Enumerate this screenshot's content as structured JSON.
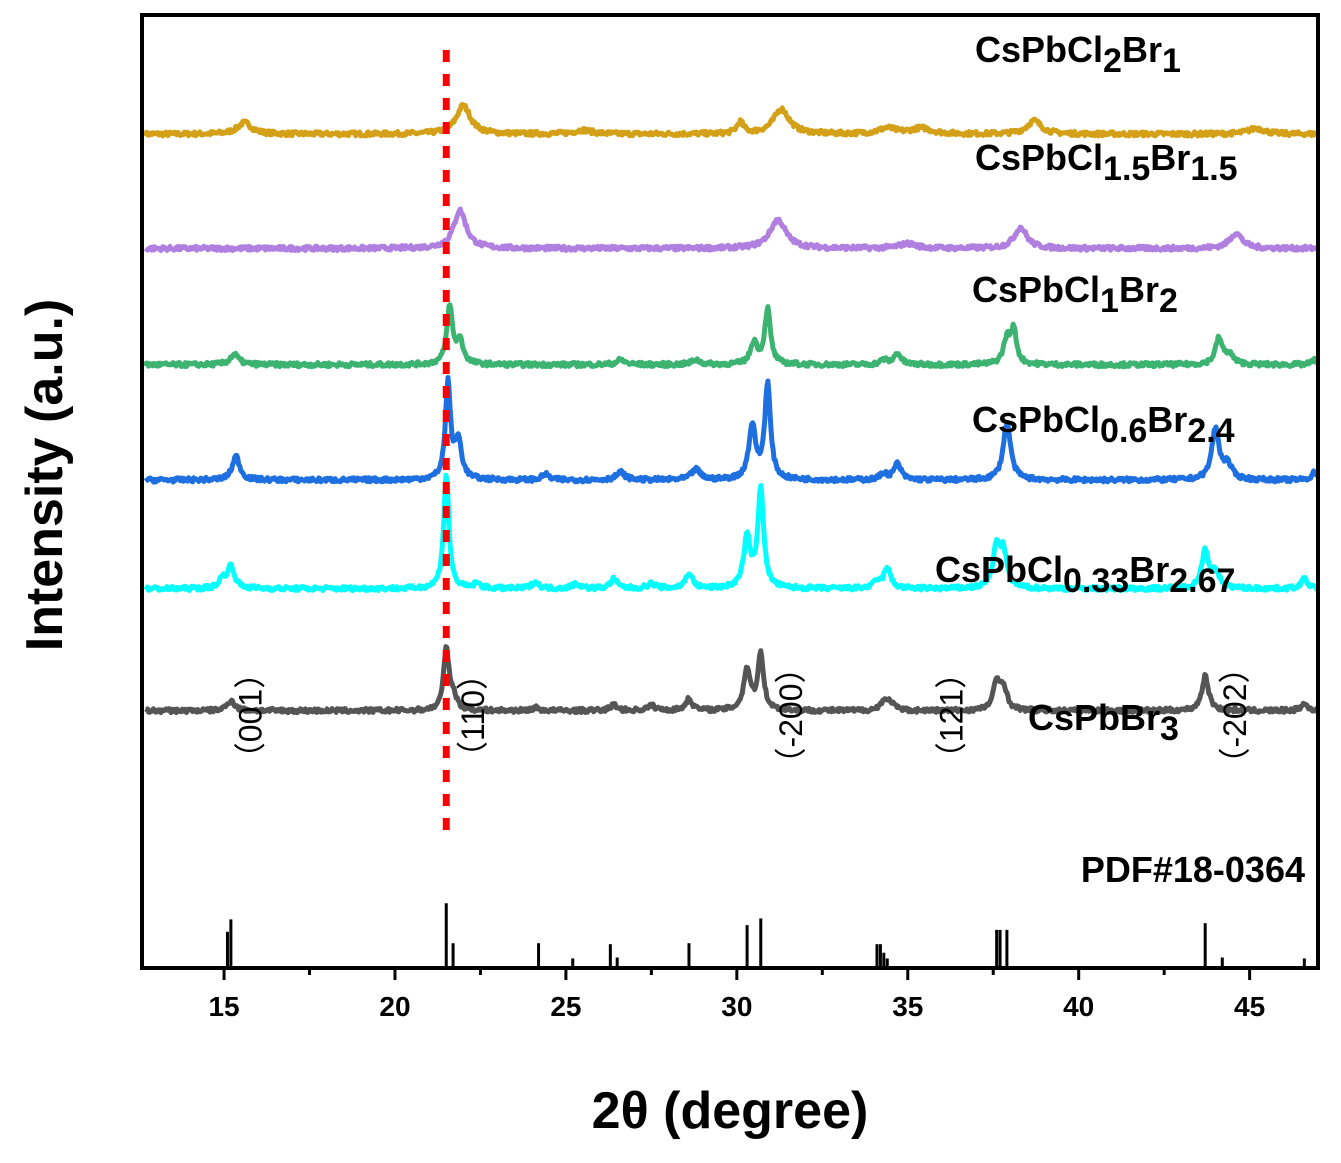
{
  "chart_data": {
    "type": "line",
    "xlabel": "2θ (degree)",
    "ylabel": "Intensity (a.u.)",
    "xlim": [
      12.6,
      47.0
    ],
    "xticks": [
      15,
      20,
      25,
      30,
      35,
      40,
      45
    ],
    "ylim": [
      0,
      100
    ],
    "grid": false,
    "y_ticks_labels": false,
    "series": [
      {
        "name": "CsPbCl2Br1",
        "label_parts": [
          [
            "CsPbCl",
            ""
          ],
          [
            "2",
            "sub"
          ],
          [
            "Br",
            ""
          ],
          [
            "1",
            "sub"
          ]
        ],
        "color": "#D4A017",
        "baseline": 87.5,
        "peaks": [
          [
            15.6,
            1.2,
            0.25
          ],
          [
            22.0,
            3.0,
            0.25
          ],
          [
            25.5,
            0.4,
            0.3
          ],
          [
            30.1,
            1.2,
            0.12
          ],
          [
            31.3,
            2.6,
            0.28
          ],
          [
            34.4,
            0.6,
            0.3
          ],
          [
            35.4,
            0.6,
            0.35
          ],
          [
            38.7,
            1.4,
            0.25
          ],
          [
            45.2,
            0.6,
            0.3
          ]
        ]
      },
      {
        "name": "CsPbCl1.5Br1.5",
        "label_parts": [
          [
            "CsPbCl",
            ""
          ],
          [
            "1.5",
            "sub"
          ],
          [
            "Br",
            ""
          ],
          [
            "1.5",
            "sub"
          ]
        ],
        "color": "#B07FE0",
        "baseline": 75.5,
        "peaks": [
          [
            21.9,
            4.0,
            0.22
          ],
          [
            31.2,
            3.0,
            0.28
          ],
          [
            35.0,
            0.5,
            0.3
          ],
          [
            38.3,
            2.2,
            0.22
          ],
          [
            44.6,
            1.6,
            0.22
          ]
        ]
      },
      {
        "name": "CsPbCl1Br2",
        "label_parts": [
          [
            "CsPbCl",
            ""
          ],
          [
            "1",
            "sub"
          ],
          [
            "Br",
            ""
          ],
          [
            "2",
            "sub"
          ]
        ],
        "color": "#3CB371",
        "baseline": 63.3,
        "peaks": [
          [
            15.3,
            1.1,
            0.15
          ],
          [
            21.6,
            6.0,
            0.1
          ],
          [
            21.9,
            2.4,
            0.12
          ],
          [
            26.6,
            0.5,
            0.15
          ],
          [
            28.8,
            0.5,
            0.15
          ],
          [
            30.5,
            2.3,
            0.12
          ],
          [
            30.9,
            5.8,
            0.1
          ],
          [
            34.3,
            0.5,
            0.12
          ],
          [
            34.7,
            1.2,
            0.12
          ],
          [
            37.9,
            2.6,
            0.12
          ],
          [
            38.1,
            3.4,
            0.1
          ],
          [
            44.1,
            2.7,
            0.12
          ],
          [
            44.4,
            1.0,
            0.15
          ],
          [
            46.9,
            0.5,
            0.1
          ]
        ]
      },
      {
        "name": "CsPbCl0.6Br2.4",
        "label_parts": [
          [
            "CsPbCl",
            ""
          ],
          [
            "0.6",
            "sub"
          ],
          [
            "Br",
            ""
          ],
          [
            "2.4",
            "sub"
          ]
        ],
        "color": "#1E6FE0",
        "baseline": 51.2,
        "peaks": [
          [
            15.35,
            2.5,
            0.13
          ],
          [
            21.55,
            10.0,
            0.09
          ],
          [
            21.85,
            4.0,
            0.12
          ],
          [
            24.4,
            0.6,
            0.12
          ],
          [
            26.6,
            0.8,
            0.15
          ],
          [
            28.8,
            1.1,
            0.15
          ],
          [
            30.45,
            5.6,
            0.12
          ],
          [
            30.9,
            10.0,
            0.1
          ],
          [
            34.3,
            0.7,
            0.12
          ],
          [
            34.7,
            1.7,
            0.12
          ],
          [
            37.9,
            6.0,
            0.13
          ],
          [
            44.0,
            5.3,
            0.13
          ],
          [
            44.35,
            1.5,
            0.15
          ],
          [
            46.9,
            0.8,
            0.1
          ]
        ]
      },
      {
        "name": "CsPbCl0.33Br2.67",
        "label_parts": [
          [
            "CsPbCl",
            ""
          ],
          [
            "0.33",
            "sub"
          ],
          [
            "Br",
            ""
          ],
          [
            "2.67",
            "sub"
          ]
        ],
        "color": "#00FFFF",
        "baseline": 39.8,
        "peaks": [
          [
            14.95,
            0.9,
            0.12
          ],
          [
            15.2,
            2.3,
            0.13
          ],
          [
            21.5,
            12.0,
            0.09
          ],
          [
            22.4,
            0.5,
            0.12
          ],
          [
            24.1,
            0.7,
            0.12
          ],
          [
            25.3,
            0.5,
            0.15
          ],
          [
            26.4,
            1.0,
            0.12
          ],
          [
            27.5,
            0.5,
            0.15
          ],
          [
            28.6,
            1.6,
            0.12
          ],
          [
            30.3,
            5.2,
            0.12
          ],
          [
            30.7,
            10.5,
            0.1
          ],
          [
            34.1,
            0.7,
            0.12
          ],
          [
            34.4,
            2.1,
            0.12
          ],
          [
            37.6,
            4.3,
            0.12
          ],
          [
            37.8,
            3.5,
            0.12
          ],
          [
            43.7,
            4.0,
            0.12
          ],
          [
            44.0,
            1.5,
            0.15
          ],
          [
            46.6,
            1.0,
            0.12
          ]
        ]
      },
      {
        "name": "CsPbBr3",
        "label_parts": [
          [
            "CsPbBr",
            ""
          ],
          [
            "3",
            "sub"
          ]
        ],
        "color": "#555555",
        "baseline": 27.0,
        "peaks": [
          [
            15.2,
            1.1,
            0.13
          ],
          [
            21.5,
            6.5,
            0.09
          ],
          [
            21.7,
            1.5,
            0.12
          ],
          [
            24.1,
            0.3,
            0.12
          ],
          [
            26.4,
            0.6,
            0.12
          ],
          [
            27.5,
            0.5,
            0.15
          ],
          [
            28.6,
            1.2,
            0.12
          ],
          [
            30.3,
            4.3,
            0.12
          ],
          [
            30.7,
            5.9,
            0.1
          ],
          [
            34.3,
            1.0,
            0.12
          ],
          [
            34.5,
            0.8,
            0.12
          ],
          [
            37.6,
            2.8,
            0.12
          ],
          [
            37.8,
            2.3,
            0.12
          ],
          [
            43.7,
            3.6,
            0.12
          ],
          [
            46.6,
            0.7,
            0.12
          ]
        ]
      }
    ],
    "reference": {
      "name": "PDF#18-0364",
      "color": "#000000",
      "baseline": 0,
      "lines": [
        [
          15.1,
          3.8
        ],
        [
          15.2,
          5.1
        ],
        [
          21.5,
          6.8
        ],
        [
          21.7,
          2.6
        ],
        [
          24.2,
          2.6
        ],
        [
          25.2,
          1.0
        ],
        [
          26.3,
          2.5
        ],
        [
          26.5,
          1.1
        ],
        [
          28.6,
          2.6
        ],
        [
          30.3,
          4.5
        ],
        [
          30.7,
          5.2
        ],
        [
          34.1,
          2.5
        ],
        [
          34.2,
          2.5
        ],
        [
          34.3,
          1.6
        ],
        [
          34.4,
          1.0
        ],
        [
          37.6,
          4.0
        ],
        [
          37.7,
          4.0
        ],
        [
          37.9,
          4.0
        ],
        [
          43.7,
          4.7
        ],
        [
          44.2,
          1.1
        ],
        [
          46.6,
          1.0
        ]
      ]
    },
    "marker_line": {
      "x": 21.5,
      "color": "#FF0000",
      "style": "dotted"
    },
    "hkl_annotations": [
      {
        "text": "（001）",
        "x": 16.1,
        "y": 26.5
      },
      {
        "text": "（110）",
        "x": 22.6,
        "y": 26.5
      },
      {
        "text": "（-200）",
        "x": 31.9,
        "y": 26.5
      },
      {
        "text": "（121）",
        "x": 36.6,
        "y": 26.5
      },
      {
        "text": "（-202）",
        "x": 44.9,
        "y": 26.5
      }
    ]
  }
}
